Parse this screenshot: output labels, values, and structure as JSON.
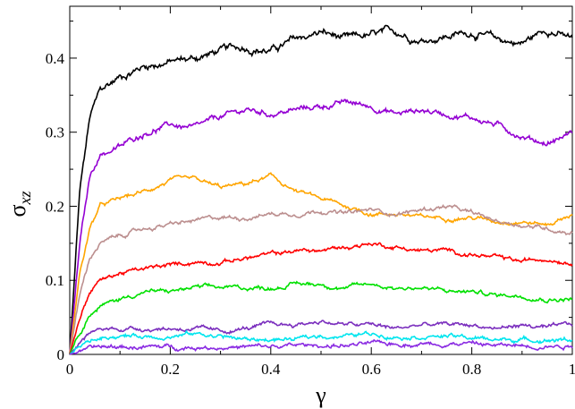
{
  "chart_data": {
    "type": "line",
    "xlabel": "γ",
    "ylabel_main": "σ",
    "ylabel_sub": "xz",
    "xlim": [
      0,
      1
    ],
    "ylim": [
      0,
      0.47
    ],
    "x_ticks": [
      0,
      0.2,
      0.4,
      0.6,
      0.8,
      1
    ],
    "x_tick_labels": [
      "0",
      "0.2",
      "0.4",
      "0.6",
      "0.8",
      "1"
    ],
    "y_ticks": [
      0,
      0.1,
      0.2,
      0.3,
      0.4
    ],
    "y_tick_labels": [
      "0",
      "0.1",
      "0.2",
      "0.3",
      "0.4"
    ],
    "grid": false,
    "series": [
      {
        "color": "#000000",
        "x": [
          0,
          0.02,
          0.04,
          0.06,
          0.08,
          0.1,
          0.15,
          0.2,
          0.25,
          0.3,
          0.35,
          0.4,
          0.45,
          0.5,
          0.55,
          0.6,
          0.65,
          0.7,
          0.75,
          0.8,
          0.85,
          0.9,
          0.95,
          1.0
        ],
        "y": [
          0,
          0.22,
          0.32,
          0.355,
          0.365,
          0.375,
          0.39,
          0.395,
          0.4,
          0.41,
          0.415,
          0.41,
          0.425,
          0.435,
          0.425,
          0.43,
          0.435,
          0.425,
          0.43,
          0.435,
          0.425,
          0.42,
          0.44,
          0.425
        ]
      },
      {
        "color": "#9400d3",
        "x": [
          0,
          0.02,
          0.04,
          0.06,
          0.08,
          0.1,
          0.15,
          0.2,
          0.25,
          0.3,
          0.35,
          0.4,
          0.45,
          0.5,
          0.55,
          0.6,
          0.65,
          0.7,
          0.75,
          0.8,
          0.85,
          0.9,
          0.95,
          1.0
        ],
        "y": [
          0,
          0.15,
          0.24,
          0.27,
          0.275,
          0.28,
          0.3,
          0.31,
          0.305,
          0.32,
          0.33,
          0.325,
          0.33,
          0.335,
          0.34,
          0.335,
          0.325,
          0.33,
          0.325,
          0.32,
          0.31,
          0.295,
          0.285,
          0.3
        ]
      },
      {
        "color": "#ffa500",
        "x": [
          0,
          0.02,
          0.04,
          0.06,
          0.08,
          0.1,
          0.15,
          0.2,
          0.25,
          0.3,
          0.35,
          0.4,
          0.45,
          0.5,
          0.55,
          0.6,
          0.65,
          0.7,
          0.75,
          0.8,
          0.85,
          0.9,
          0.95,
          1.0
        ],
        "y": [
          0,
          0.11,
          0.17,
          0.2,
          0.205,
          0.21,
          0.22,
          0.235,
          0.235,
          0.225,
          0.23,
          0.24,
          0.22,
          0.21,
          0.2,
          0.19,
          0.19,
          0.185,
          0.185,
          0.185,
          0.18,
          0.18,
          0.175,
          0.19
        ]
      },
      {
        "color": "#bc8f8f",
        "x": [
          0,
          0.02,
          0.04,
          0.06,
          0.08,
          0.1,
          0.15,
          0.2,
          0.25,
          0.3,
          0.35,
          0.4,
          0.45,
          0.5,
          0.55,
          0.6,
          0.65,
          0.7,
          0.75,
          0.8,
          0.85,
          0.9,
          0.95,
          1.0
        ],
        "y": [
          0,
          0.08,
          0.13,
          0.15,
          0.155,
          0.16,
          0.17,
          0.175,
          0.18,
          0.185,
          0.185,
          0.19,
          0.19,
          0.195,
          0.19,
          0.195,
          0.19,
          0.195,
          0.2,
          0.19,
          0.18,
          0.175,
          0.17,
          0.165
        ]
      },
      {
        "color": "#ff0000",
        "x": [
          0,
          0.02,
          0.04,
          0.06,
          0.08,
          0.1,
          0.15,
          0.2,
          0.25,
          0.3,
          0.35,
          0.4,
          0.45,
          0.5,
          0.55,
          0.6,
          0.65,
          0.7,
          0.75,
          0.8,
          0.85,
          0.9,
          0.95,
          1.0
        ],
        "y": [
          0,
          0.05,
          0.085,
          0.1,
          0.105,
          0.11,
          0.115,
          0.12,
          0.125,
          0.125,
          0.13,
          0.135,
          0.14,
          0.14,
          0.145,
          0.15,
          0.145,
          0.14,
          0.14,
          0.135,
          0.13,
          0.125,
          0.13,
          0.125
        ]
      },
      {
        "color": "#00e000",
        "x": [
          0,
          0.02,
          0.04,
          0.06,
          0.08,
          0.1,
          0.15,
          0.2,
          0.25,
          0.3,
          0.35,
          0.4,
          0.45,
          0.5,
          0.55,
          0.6,
          0.65,
          0.7,
          0.75,
          0.8,
          0.85,
          0.9,
          0.95,
          1.0
        ],
        "y": [
          0,
          0.03,
          0.055,
          0.065,
          0.07,
          0.075,
          0.085,
          0.085,
          0.09,
          0.09,
          0.09,
          0.09,
          0.095,
          0.095,
          0.09,
          0.095,
          0.09,
          0.09,
          0.085,
          0.085,
          0.08,
          0.08,
          0.075,
          0.075
        ]
      },
      {
        "color": "#7b2fbe",
        "x": [
          0,
          0.02,
          0.04,
          0.06,
          0.08,
          0.1,
          0.15,
          0.2,
          0.25,
          0.3,
          0.35,
          0.4,
          0.45,
          0.5,
          0.55,
          0.6,
          0.65,
          0.7,
          0.75,
          0.8,
          0.85,
          0.9,
          0.95,
          1.0
        ],
        "y": [
          0,
          0.015,
          0.028,
          0.033,
          0.035,
          0.035,
          0.035,
          0.035,
          0.035,
          0.03,
          0.035,
          0.04,
          0.04,
          0.045,
          0.04,
          0.04,
          0.035,
          0.04,
          0.04,
          0.04,
          0.035,
          0.04,
          0.035,
          0.04
        ]
      },
      {
        "color": "#00e5ee",
        "x": [
          0,
          0.02,
          0.04,
          0.06,
          0.08,
          0.1,
          0.15,
          0.2,
          0.25,
          0.3,
          0.35,
          0.4,
          0.45,
          0.5,
          0.55,
          0.6,
          0.65,
          0.7,
          0.75,
          0.8,
          0.85,
          0.9,
          0.95,
          1.0
        ],
        "y": [
          0,
          0.01,
          0.018,
          0.022,
          0.025,
          0.025,
          0.025,
          0.025,
          0.028,
          0.025,
          0.02,
          0.02,
          0.02,
          0.025,
          0.025,
          0.028,
          0.025,
          0.025,
          0.025,
          0.022,
          0.02,
          0.02,
          0.02,
          0.02
        ]
      },
      {
        "color": "#8a2be2",
        "x": [
          0,
          0.02,
          0.04,
          0.06,
          0.08,
          0.1,
          0.15,
          0.2,
          0.25,
          0.3,
          0.35,
          0.4,
          0.45,
          0.5,
          0.55,
          0.6,
          0.65,
          0.7,
          0.75,
          0.8,
          0.85,
          0.9,
          0.95,
          1.0
        ],
        "y": [
          0,
          0.004,
          0.007,
          0.009,
          0.01,
          0.01,
          0.01,
          0.01,
          0.01,
          0.01,
          0.01,
          0.01,
          0.012,
          0.012,
          0.012,
          0.014,
          0.014,
          0.015,
          0.015,
          0.015,
          0.012,
          0.012,
          0.012,
          0.012
        ]
      }
    ]
  }
}
